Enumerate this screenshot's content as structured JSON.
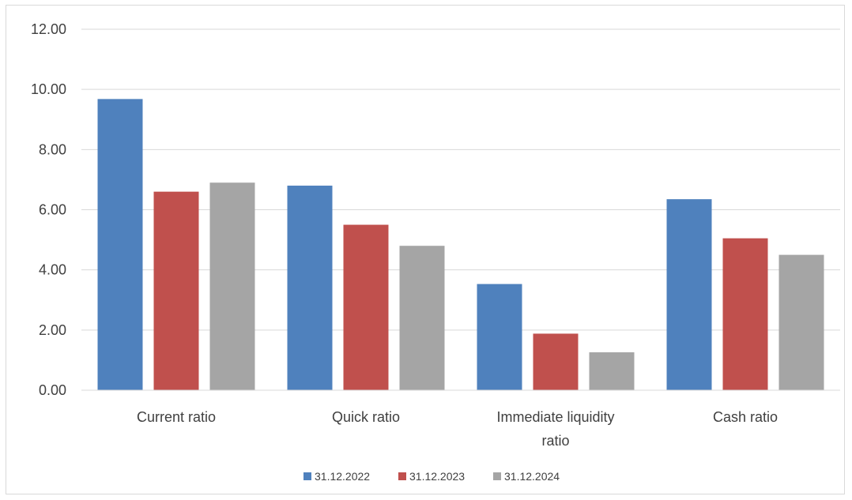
{
  "chart_data": {
    "type": "bar",
    "title": "",
    "xlabel": "",
    "ylabel": "",
    "categories": [
      [
        "Current ratio"
      ],
      [
        "Quick ratio"
      ],
      [
        "Immediate liquidity",
        "ratio"
      ],
      [
        "Cash ratio"
      ]
    ],
    "series": [
      {
        "name": "31.12.2022",
        "color": "#4f81bd",
        "values": [
          9.68,
          6.8,
          3.53,
          6.35
        ]
      },
      {
        "name": "31.12.2023",
        "color": "#c0504d",
        "values": [
          6.6,
          5.5,
          1.88,
          5.05
        ]
      },
      {
        "name": "31.12.2024",
        "color": "#a5a5a5",
        "values": [
          6.9,
          4.8,
          1.26,
          4.5
        ]
      }
    ],
    "ylim": [
      0,
      12
    ],
    "yticks": [
      "0.00",
      "2.00",
      "4.00",
      "6.00",
      "8.00",
      "10.00",
      "12.00"
    ],
    "grid": true,
    "legend": "bottom"
  }
}
